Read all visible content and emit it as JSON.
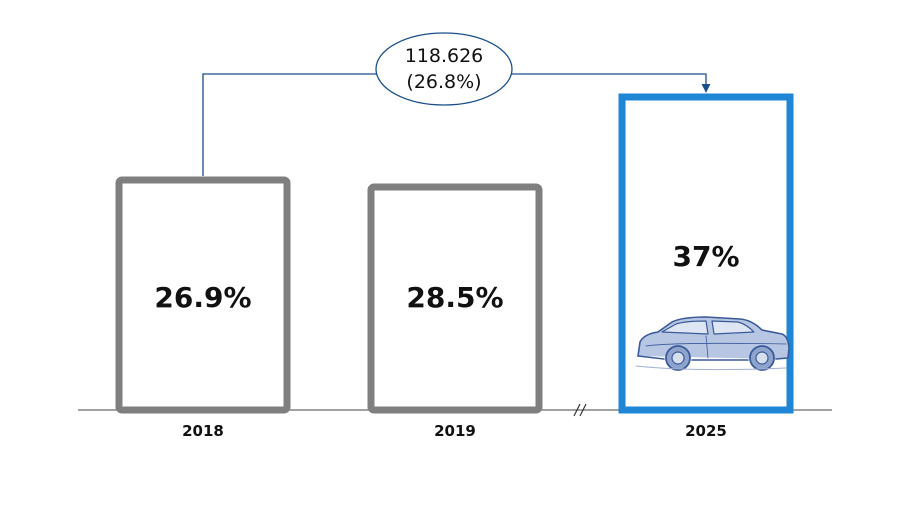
{
  "chart_data": {
    "type": "bar",
    "categories": [
      "2018",
      "2019",
      "2025"
    ],
    "values": [
      26.9,
      28.5,
      37
    ],
    "value_labels": [
      "26.9%",
      "28.5%",
      "37%"
    ],
    "highlight_index": 2,
    "colors": {
      "default": "#7f7f7f",
      "highlight": "#1f86d6",
      "annotation": "#1a4f8b"
    },
    "axis_break": "//",
    "annotation": {
      "from": "2018",
      "to": "2025",
      "line1": "118.626",
      "line2": "(26.8%)"
    },
    "grid": false,
    "legend": "none",
    "image": "car-sketch-icon"
  }
}
